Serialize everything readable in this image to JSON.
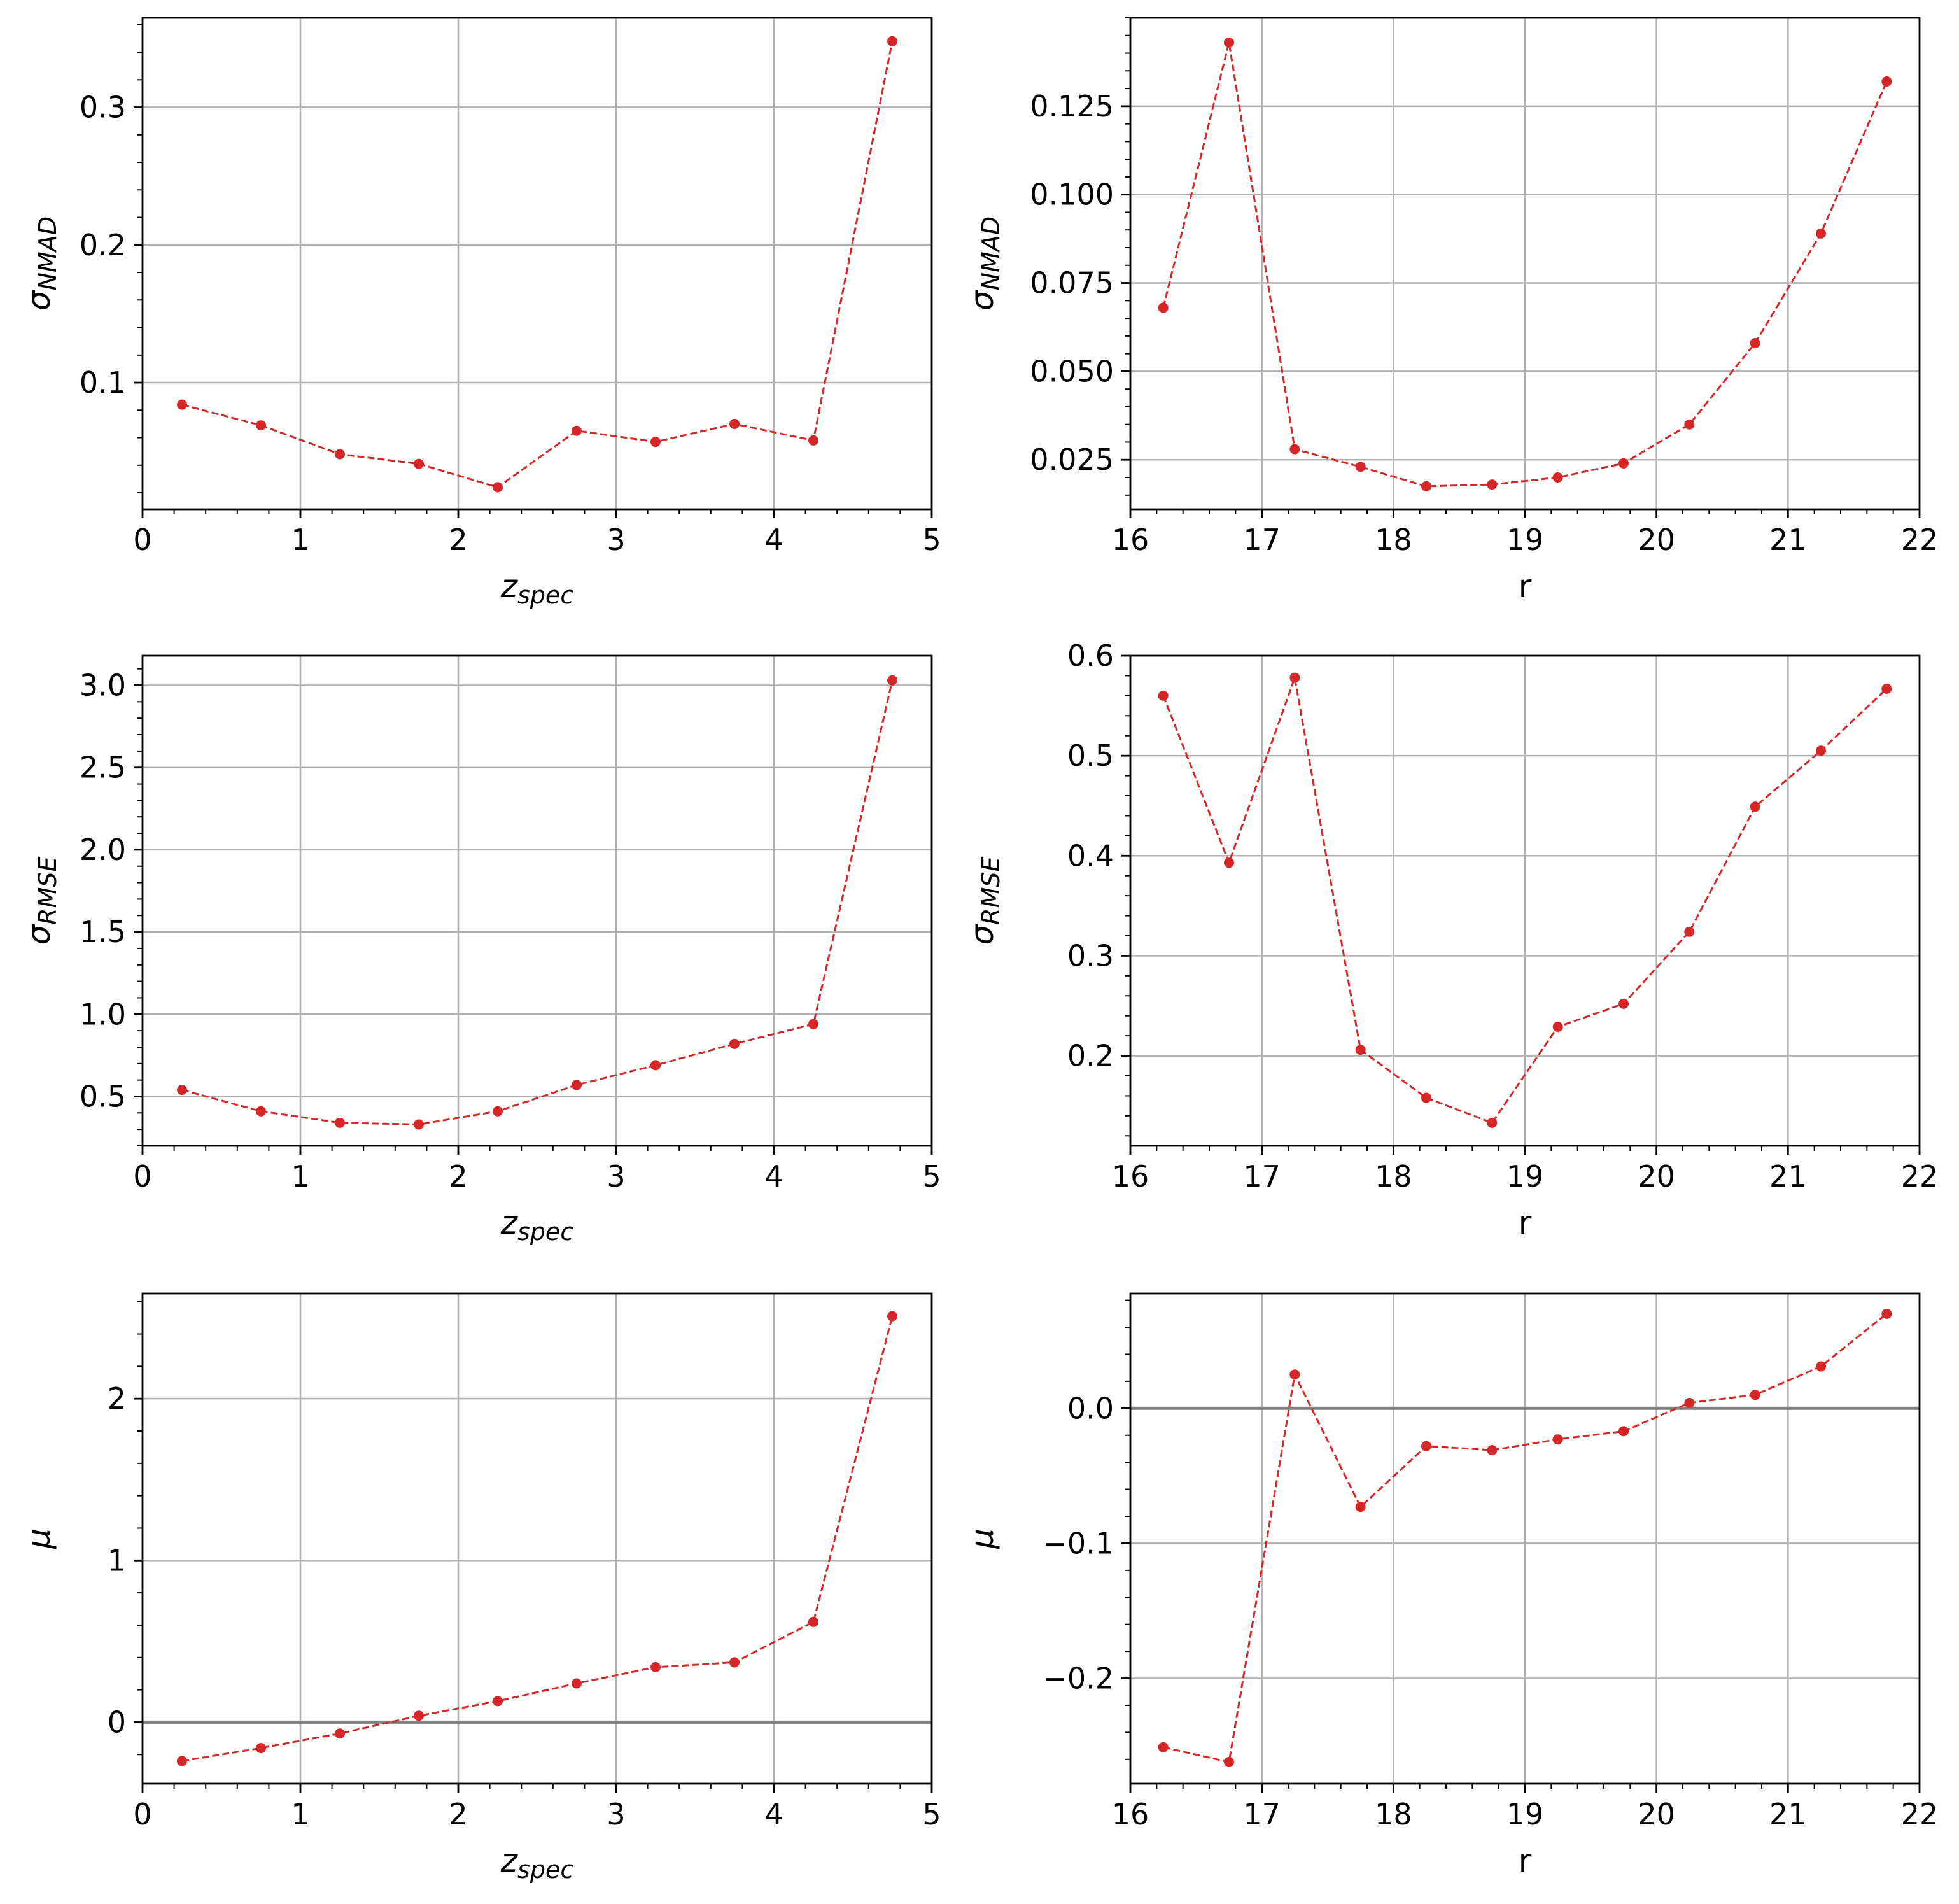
{
  "figure": {
    "line_color": "#d62728",
    "grid_color": "#b0b0b0",
    "hline_color": "#808080"
  },
  "chart_data": [
    {
      "type": "line",
      "xlabel": "z",
      "xlabel_sub": "spec",
      "ylabel": "σ",
      "ylabel_sub": "NMAD",
      "xlim": [
        0,
        5
      ],
      "ylim": [
        0.008,
        0.365
      ],
      "xticks": [
        0,
        1,
        2,
        3,
        4,
        5
      ],
      "xtick_labels": [
        "0",
        "1",
        "2",
        "3",
        "4",
        "5"
      ],
      "yticks": [
        0.1,
        0.2,
        0.3
      ],
      "ytick_labels": [
        "0.1",
        "0.2",
        "0.3"
      ],
      "x_minor_step": 0.2,
      "y_minor_step": 0.02,
      "grid": true,
      "hline": null,
      "series": [
        {
          "x": [
            0.25,
            0.75,
            1.25,
            1.75,
            2.25,
            2.75,
            3.25,
            3.75,
            4.25,
            4.75
          ],
          "y": [
            0.084,
            0.069,
            0.048,
            0.041,
            0.024,
            0.065,
            0.057,
            0.07,
            0.058,
            0.348
          ]
        }
      ]
    },
    {
      "type": "line",
      "xlabel": "r",
      "xlabel_sub": "",
      "ylabel": "σ",
      "ylabel_sub": "NMAD",
      "xlim": [
        16,
        22
      ],
      "ylim": [
        0.011,
        0.15
      ],
      "xticks": [
        16,
        17,
        18,
        19,
        20,
        21,
        22
      ],
      "xtick_labels": [
        "16",
        "17",
        "18",
        "19",
        "20",
        "21",
        "22"
      ],
      "yticks": [
        0.025,
        0.05,
        0.075,
        0.1,
        0.125
      ],
      "ytick_labels": [
        "0.025",
        "0.050",
        "0.075",
        "0.100",
        "0.125"
      ],
      "x_minor_step": 0.2,
      "y_minor_step": 0.005,
      "grid": true,
      "hline": null,
      "series": [
        {
          "x": [
            16.25,
            16.75,
            17.25,
            17.75,
            18.25,
            18.75,
            19.25,
            19.75,
            20.25,
            20.75,
            21.25,
            21.75
          ],
          "y": [
            0.068,
            0.143,
            0.028,
            0.023,
            0.0175,
            0.018,
            0.02,
            0.024,
            0.035,
            0.058,
            0.089,
            0.132
          ]
        }
      ]
    },
    {
      "type": "line",
      "xlabel": "z",
      "xlabel_sub": "spec",
      "ylabel": "σ",
      "ylabel_sub": "RMSE",
      "xlim": [
        0,
        5
      ],
      "ylim": [
        0.2,
        3.18
      ],
      "xticks": [
        0,
        1,
        2,
        3,
        4,
        5
      ],
      "xtick_labels": [
        "0",
        "1",
        "2",
        "3",
        "4",
        "5"
      ],
      "yticks": [
        0.5,
        1.0,
        1.5,
        2.0,
        2.5,
        3.0
      ],
      "ytick_labels": [
        "0.5",
        "1.0",
        "1.5",
        "2.0",
        "2.5",
        "3.0"
      ],
      "x_minor_step": 0.2,
      "y_minor_step": 0.1,
      "grid": true,
      "hline": null,
      "series": [
        {
          "x": [
            0.25,
            0.75,
            1.25,
            1.75,
            2.25,
            2.75,
            3.25,
            3.75,
            4.25,
            4.75
          ],
          "y": [
            0.54,
            0.41,
            0.34,
            0.33,
            0.41,
            0.57,
            0.69,
            0.82,
            0.94,
            3.03
          ]
        }
      ]
    },
    {
      "type": "line",
      "xlabel": "r",
      "xlabel_sub": "",
      "ylabel": "σ",
      "ylabel_sub": "RMSE",
      "xlim": [
        16,
        22
      ],
      "ylim": [
        0.11,
        0.6
      ],
      "xticks": [
        16,
        17,
        18,
        19,
        20,
        21,
        22
      ],
      "xtick_labels": [
        "16",
        "17",
        "18",
        "19",
        "20",
        "21",
        "22"
      ],
      "yticks": [
        0.2,
        0.3,
        0.4,
        0.5,
        0.6
      ],
      "ytick_labels": [
        "0.2",
        "0.3",
        "0.4",
        "0.5",
        "0.6"
      ],
      "x_minor_step": 0.2,
      "y_minor_step": 0.02,
      "grid": true,
      "hline": null,
      "series": [
        {
          "x": [
            16.25,
            16.75,
            17.25,
            17.75,
            18.25,
            18.75,
            19.25,
            19.75,
            20.25,
            20.75,
            21.25,
            21.75
          ],
          "y": [
            0.56,
            0.393,
            0.578,
            0.206,
            0.158,
            0.133,
            0.229,
            0.252,
            0.324,
            0.449,
            0.505,
            0.567
          ]
        }
      ]
    },
    {
      "type": "line",
      "xlabel": "z",
      "xlabel_sub": "spec",
      "ylabel": "μ",
      "ylabel_sub": "",
      "xlim": [
        0,
        5
      ],
      "ylim": [
        -0.38,
        2.65
      ],
      "xticks": [
        0,
        1,
        2,
        3,
        4,
        5
      ],
      "xtick_labels": [
        "0",
        "1",
        "2",
        "3",
        "4",
        "5"
      ],
      "yticks": [
        0,
        1,
        2
      ],
      "ytick_labels": [
        "0",
        "1",
        "2"
      ],
      "x_minor_step": 0.2,
      "y_minor_step": 0.2,
      "grid": true,
      "hline": 0,
      "series": [
        {
          "x": [
            0.25,
            0.75,
            1.25,
            1.75,
            2.25,
            2.75,
            3.25,
            3.75,
            4.25,
            4.75
          ],
          "y": [
            -0.24,
            -0.16,
            -0.07,
            0.04,
            0.13,
            0.24,
            0.34,
            0.37,
            0.62,
            2.51
          ]
        }
      ]
    },
    {
      "type": "line",
      "xlabel": "r",
      "xlabel_sub": "",
      "ylabel": "μ",
      "ylabel_sub": "",
      "xlim": [
        16,
        22
      ],
      "ylim": [
        -0.278,
        0.085
      ],
      "xticks": [
        16,
        17,
        18,
        19,
        20,
        21,
        22
      ],
      "xtick_labels": [
        "16",
        "17",
        "18",
        "19",
        "20",
        "21",
        "22"
      ],
      "yticks": [
        -0.2,
        -0.1,
        0.0
      ],
      "ytick_labels": [
        "−0.2",
        "−0.1",
        "0.0"
      ],
      "x_minor_step": 0.2,
      "y_minor_step": 0.02,
      "grid": true,
      "hline": 0,
      "series": [
        {
          "x": [
            16.25,
            16.75,
            17.25,
            17.75,
            18.25,
            18.75,
            19.25,
            19.75,
            20.25,
            20.75,
            21.25,
            21.75
          ],
          "y": [
            -0.251,
            -0.262,
            0.025,
            -0.073,
            -0.028,
            -0.031,
            -0.023,
            -0.017,
            0.004,
            0.01,
            0.031,
            0.07
          ]
        }
      ]
    }
  ]
}
